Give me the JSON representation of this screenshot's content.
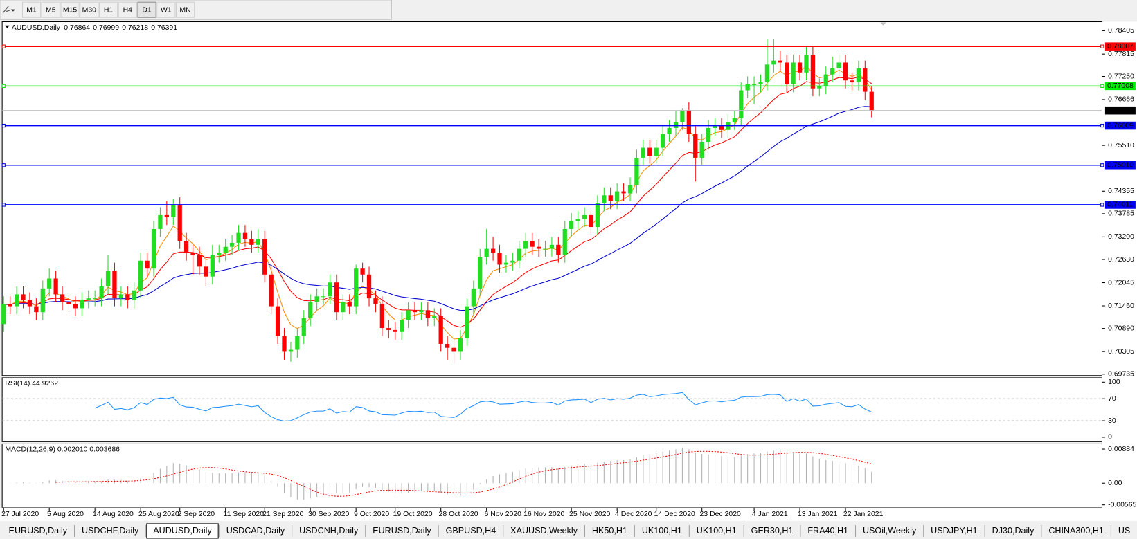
{
  "toolbar": {
    "timeframes": [
      {
        "label": "M1",
        "active": false
      },
      {
        "label": "M5",
        "active": false
      },
      {
        "label": "M15",
        "active": false
      },
      {
        "label": "M30",
        "active": false
      },
      {
        "label": "H1",
        "active": false
      },
      {
        "label": "H4",
        "active": false
      },
      {
        "label": "D1",
        "active": true
      },
      {
        "label": "W1",
        "active": false
      },
      {
        "label": "MN",
        "active": false
      }
    ]
  },
  "tabs": [
    {
      "label": "EURUSD,Daily",
      "active": false
    },
    {
      "label": "USDCHF,Daily",
      "active": false
    },
    {
      "label": "AUDUSD,Daily",
      "active": true
    },
    {
      "label": "USDCAD,Daily",
      "active": false
    },
    {
      "label": "USDCNH,Daily",
      "active": false
    },
    {
      "label": "EURUSD,Daily",
      "active": false
    },
    {
      "label": "GBPUSD,H4",
      "active": false
    },
    {
      "label": "XAUUSD,Weekly",
      "active": false
    },
    {
      "label": "HK50,H1",
      "active": false
    },
    {
      "label": "UK100,H1",
      "active": false
    },
    {
      "label": "UK100,H1",
      "active": false
    },
    {
      "label": "GER30,H1",
      "active": false
    },
    {
      "label": "FRA40,H1",
      "active": false
    },
    {
      "label": "USOil,Weekly",
      "active": false
    },
    {
      "label": "USDJPY,H1",
      "active": false
    },
    {
      "label": "DJ30,Daily",
      "active": false
    },
    {
      "label": "CHINA300,H1",
      "active": false
    },
    {
      "label": "US",
      "active": false
    }
  ],
  "chart_data": {
    "type": "candlestick",
    "symbol": "AUDUSD,Daily",
    "up_color": "#22dd22",
    "down_color": "#ff0000",
    "categories": [
      "27 Jul 2020",
      null,
      null,
      null,
      null,
      null,
      null,
      "5 Aug 2020",
      null,
      null,
      null,
      null,
      null,
      null,
      "14 Aug 2020",
      null,
      null,
      null,
      null,
      null,
      null,
      "25 Aug 2020",
      null,
      null,
      null,
      null,
      null,
      "2 Sep 2020",
      null,
      null,
      null,
      null,
      null,
      null,
      "11 Sep 2020",
      null,
      null,
      null,
      null,
      null,
      "21 Sep 2020",
      null,
      null,
      null,
      null,
      null,
      null,
      "30 Sep 2020",
      null,
      null,
      null,
      null,
      null,
      null,
      "9 Oct 2020",
      null,
      null,
      null,
      null,
      null,
      "19 Oct 2020",
      null,
      null,
      null,
      null,
      null,
      null,
      "28 Oct 2020",
      null,
      null,
      null,
      null,
      null,
      null,
      "6 Nov 2020",
      null,
      null,
      null,
      null,
      null,
      "16 Nov 2020",
      null,
      null,
      null,
      null,
      null,
      null,
      "25 Nov 2020",
      null,
      null,
      null,
      null,
      null,
      null,
      "4 Dec 2020",
      null,
      null,
      null,
      null,
      null,
      "14 Dec 2020",
      null,
      null,
      null,
      null,
      null,
      null,
      "23 Dec 2020",
      null,
      null,
      null,
      null,
      null,
      null,
      null,
      "4 Jan 2021",
      null,
      null,
      null,
      null,
      null,
      null,
      "13 Jan 2021",
      null,
      null,
      null,
      null,
      null,
      null,
      "22 Jan 2021",
      null,
      null,
      null,
      null
    ],
    "open": [
      0.71,
      0.715,
      0.7145,
      0.7175,
      0.716,
      0.7145,
      0.713,
      0.719,
      0.7215,
      0.7175,
      0.7155,
      0.715,
      0.714,
      0.716,
      0.7165,
      0.7165,
      0.7195,
      0.7235,
      0.7165,
      0.7175,
      0.716,
      0.7185,
      0.726,
      0.724,
      0.734,
      0.7375,
      0.737,
      0.74,
      0.731,
      0.728,
      0.7275,
      0.7245,
      0.722,
      0.7275,
      0.728,
      0.7295,
      0.7305,
      0.733,
      0.7315,
      0.73,
      0.7315,
      0.7225,
      0.7145,
      0.707,
      0.703,
      0.7035,
      0.707,
      0.7115,
      0.7155,
      0.717,
      0.717,
      0.7205,
      0.713,
      0.7155,
      0.7145,
      0.724,
      0.7225,
      0.7165,
      0.715,
      0.709,
      0.7085,
      0.708,
      0.711,
      0.7135,
      0.713,
      0.7135,
      0.7115,
      0.712,
      0.705,
      0.704,
      0.703,
      0.7065,
      0.7145,
      0.719,
      0.727,
      0.729,
      0.728,
      0.725,
      0.7255,
      0.726,
      0.729,
      0.731,
      0.7295,
      0.729,
      0.729,
      0.73,
      0.7275,
      0.734,
      0.736,
      0.7365,
      0.7375,
      0.7345,
      0.7405,
      0.7425,
      0.741,
      0.7435,
      0.743,
      0.745,
      0.752,
      0.7545,
      0.7525,
      0.7545,
      0.758,
      0.7595,
      0.761,
      0.764,
      0.758,
      0.752,
      0.756,
      0.7595,
      0.76,
      0.759,
      0.761,
      0.762,
      0.769,
      0.7705,
      0.7705,
      0.771,
      0.7755,
      0.7765,
      0.776,
      0.7705,
      0.776,
      0.7735,
      0.778,
      0.7695,
      0.77,
      0.773,
      0.7745,
      0.776,
      0.7715,
      0.771,
      0.7745,
      0.76864
    ],
    "high": [
      0.717,
      0.717,
      0.7195,
      0.7195,
      0.718,
      0.7165,
      0.721,
      0.724,
      0.7235,
      0.7195,
      0.7175,
      0.717,
      0.718,
      0.7185,
      0.7185,
      0.7215,
      0.7275,
      0.7255,
      0.7195,
      0.7195,
      0.7205,
      0.728,
      0.728,
      0.736,
      0.7395,
      0.741,
      0.7415,
      0.742,
      0.733,
      0.73,
      0.7295,
      0.7265,
      0.73,
      0.73,
      0.7315,
      0.7325,
      0.735,
      0.735,
      0.7335,
      0.734,
      0.7335,
      0.7245,
      0.7165,
      0.709,
      0.7055,
      0.709,
      0.7135,
      0.7175,
      0.719,
      0.719,
      0.7225,
      0.7225,
      0.7175,
      0.7175,
      0.725,
      0.7255,
      0.7245,
      0.7185,
      0.717,
      0.711,
      0.7105,
      0.713,
      0.7155,
      0.7155,
      0.7155,
      0.7155,
      0.714,
      0.714,
      0.707,
      0.706,
      0.7085,
      0.7165,
      0.721,
      0.729,
      0.734,
      0.732,
      0.73,
      0.7275,
      0.728,
      0.731,
      0.733,
      0.733,
      0.7315,
      0.731,
      0.732,
      0.732,
      0.736,
      0.738,
      0.7385,
      0.7395,
      0.7395,
      0.7425,
      0.7445,
      0.7445,
      0.7455,
      0.7455,
      0.747,
      0.754,
      0.7565,
      0.7565,
      0.7565,
      0.76,
      0.7615,
      0.764,
      0.7645,
      0.766,
      0.76,
      0.758,
      0.7615,
      0.762,
      0.762,
      0.763,
      0.764,
      0.771,
      0.7725,
      0.7725,
      0.773,
      0.782,
      0.782,
      0.779,
      0.778,
      0.778,
      0.778,
      0.78,
      0.78,
      0.772,
      0.775,
      0.7775,
      0.778,
      0.778,
      0.7735,
      0.7765,
      0.7765,
      0.76999
    ],
    "low": [
      0.708,
      0.7125,
      0.7125,
      0.714,
      0.7125,
      0.711,
      0.711,
      0.717,
      0.7155,
      0.7135,
      0.713,
      0.712,
      0.712,
      0.714,
      0.7145,
      0.7145,
      0.7175,
      0.7145,
      0.7145,
      0.714,
      0.714,
      0.7165,
      0.722,
      0.722,
      0.732,
      0.735,
      0.735,
      0.729,
      0.726,
      0.7225,
      0.7225,
      0.7195,
      0.72,
      0.7255,
      0.726,
      0.7275,
      0.7285,
      0.7295,
      0.728,
      0.728,
      0.7205,
      0.7125,
      0.705,
      0.701,
      0.7005,
      0.7015,
      0.705,
      0.7095,
      0.7135,
      0.715,
      0.715,
      0.711,
      0.711,
      0.7125,
      0.7125,
      0.7205,
      0.7145,
      0.713,
      0.707,
      0.7065,
      0.706,
      0.706,
      0.709,
      0.711,
      0.711,
      0.7095,
      0.7095,
      0.703,
      0.701,
      0.7,
      0.701,
      0.7045,
      0.7125,
      0.717,
      0.725,
      0.726,
      0.723,
      0.723,
      0.7235,
      0.724,
      0.727,
      0.7275,
      0.727,
      0.727,
      0.727,
      0.7255,
      0.7255,
      0.732,
      0.734,
      0.7345,
      0.7325,
      0.7325,
      0.7385,
      0.739,
      0.739,
      0.741,
      0.741,
      0.743,
      0.75,
      0.7505,
      0.7505,
      0.7525,
      0.756,
      0.7575,
      0.759,
      0.756,
      0.746,
      0.75,
      0.754,
      0.7575,
      0.757,
      0.757,
      0.759,
      0.76,
      0.767,
      0.7655,
      0.7685,
      0.769,
      0.7735,
      0.774,
      0.7685,
      0.7685,
      0.7715,
      0.7715,
      0.7675,
      0.7675,
      0.768,
      0.771,
      0.7725,
      0.7695,
      0.769,
      0.769,
      0.7665,
      0.76218
    ],
    "close": [
      0.715,
      0.7145,
      0.7175,
      0.716,
      0.7145,
      0.713,
      0.719,
      0.7215,
      0.7175,
      0.7155,
      0.715,
      0.714,
      0.716,
      0.7165,
      0.7165,
      0.7195,
      0.7235,
      0.7165,
      0.7175,
      0.716,
      0.7185,
      0.726,
      0.724,
      0.734,
      0.7375,
      0.737,
      0.74,
      0.731,
      0.728,
      0.7275,
      0.7245,
      0.722,
      0.7275,
      0.728,
      0.7295,
      0.7305,
      0.733,
      0.7315,
      0.73,
      0.7315,
      0.7225,
      0.7145,
      0.707,
      0.703,
      0.7035,
      0.707,
      0.7115,
      0.7155,
      0.717,
      0.717,
      0.7205,
      0.713,
      0.7155,
      0.7145,
      0.724,
      0.7225,
      0.7165,
      0.715,
      0.709,
      0.7085,
      0.708,
      0.711,
      0.7135,
      0.713,
      0.7135,
      0.7115,
      0.712,
      0.705,
      0.704,
      0.703,
      0.7065,
      0.7145,
      0.719,
      0.727,
      0.729,
      0.728,
      0.725,
      0.7255,
      0.726,
      0.729,
      0.731,
      0.7295,
      0.729,
      0.729,
      0.73,
      0.7275,
      0.734,
      0.736,
      0.7365,
      0.7375,
      0.7345,
      0.7405,
      0.7425,
      0.741,
      0.7435,
      0.743,
      0.745,
      0.752,
      0.7545,
      0.7525,
      0.7545,
      0.758,
      0.7595,
      0.761,
      0.764,
      0.758,
      0.752,
      0.756,
      0.7595,
      0.76,
      0.759,
      0.761,
      0.762,
      0.769,
      0.7705,
      0.7705,
      0.771,
      0.7755,
      0.7765,
      0.776,
      0.7705,
      0.776,
      0.7735,
      0.778,
      0.7695,
      0.77,
      0.773,
      0.7745,
      0.776,
      0.7715,
      0.771,
      0.7745,
      0.76864,
      0.76391
    ],
    "ylim": [
      0.697,
      0.7863
    ],
    "yticks": [
      0.78405,
      0.77815,
      {
        "value": 0.7725,
        "label": "0.77250"
      },
      0.76666,
      {
        "value": 0.7551,
        "label": "0.75510"
      },
      0.74355,
      0.73785,
      {
        "value": 0.732,
        "label": "0.73200"
      },
      {
        "value": 0.7263,
        "label": "0.72630"
      },
      0.72045,
      {
        "value": 0.7146,
        "label": "0.71460"
      },
      {
        "value": 0.7089,
        "label": "0.70890"
      },
      0.70305,
      0.69735
    ],
    "levels": [
      {
        "value": 0.78007,
        "color": "#ff0000"
      },
      {
        "value": 0.77008,
        "color": "#00ee00"
      },
      {
        "value": 0.76009,
        "color": "#0000ff"
      },
      {
        "value": 0.7501,
        "label": "0.75010",
        "color": "#0000ff"
      },
      {
        "value": 0.74011,
        "color": "#0000ff"
      }
    ],
    "moving_averages": [
      {
        "period": 5,
        "color": "#ff8c00"
      },
      {
        "period": 13,
        "color": "#ff0000"
      },
      {
        "period": 34,
        "color": "#0000cd"
      }
    ],
    "rsi": {
      "label": "RSI(14) 44.9262",
      "period": 14,
      "color": "#1e90ff",
      "ylim": [
        -8,
        108
      ],
      "yticks": [
        100,
        70,
        30,
        0
      ],
      "levels": [
        70,
        30
      ]
    },
    "macd": {
      "label": "MACD(12,26,9) 0.002010 0.003686",
      "fast": 12,
      "slow": 26,
      "signal": 9,
      "hist_color": "#b0b0b0",
      "signal_color": "#ff0000",
      "ylim": [
        -0.0064,
        0.0102
      ],
      "yticks": [
        0.00884,
        {
          "value": 0,
          "label": "0.00"
        },
        -0.005651
      ]
    }
  }
}
